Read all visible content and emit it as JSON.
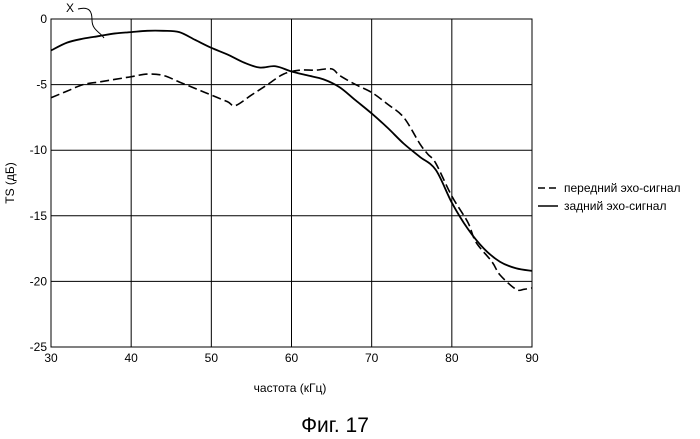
{
  "caption": "Фиг. 17",
  "chart_data": {
    "type": "line",
    "title": "",
    "xlabel": "частота (кГц)",
    "ylabel": "TS (дБ)",
    "xlim": [
      30,
      90
    ],
    "ylim": [
      -25,
      0
    ],
    "x_ticks": [
      30,
      40,
      50,
      60,
      70,
      80,
      90
    ],
    "y_ticks": [
      0,
      -5,
      -10,
      -15,
      -20,
      -25
    ],
    "grid": true,
    "legend_position": "right",
    "annotation": "X",
    "series": [
      {
        "name": "передний эхо-сигнал",
        "style": "dashed",
        "x": [
          30,
          32,
          34,
          36,
          38,
          40,
          42,
          44,
          46,
          48,
          50,
          52,
          53,
          55,
          57,
          59,
          61,
          63,
          65,
          66,
          68,
          70,
          72,
          74,
          76,
          77,
          78,
          80,
          82,
          83,
          85,
          86,
          88,
          89,
          90
        ],
        "y": [
          -6.0,
          -5.5,
          -5.0,
          -4.8,
          -4.6,
          -4.4,
          -4.2,
          -4.3,
          -4.8,
          -5.3,
          -5.8,
          -6.3,
          -6.6,
          -5.8,
          -5.0,
          -4.2,
          -3.9,
          -3.9,
          -3.8,
          -4.3,
          -5.0,
          -5.6,
          -6.5,
          -7.5,
          -9.5,
          -10.3,
          -11.0,
          -13.5,
          -15.5,
          -17.0,
          -18.5,
          -19.5,
          -20.6,
          -20.6,
          -20.5
        ]
      },
      {
        "name": "задний эхо-сигнал",
        "style": "solid",
        "x": [
          30,
          32,
          34,
          36,
          38,
          40,
          42,
          44,
          46,
          48,
          50,
          52,
          54,
          56,
          58,
          60,
          62,
          64,
          66,
          68,
          70,
          72,
          74,
          76,
          78,
          80,
          82,
          84,
          86,
          88,
          90
        ],
        "y": [
          -2.4,
          -1.8,
          -1.5,
          -1.3,
          -1.1,
          -1.0,
          -0.9,
          -0.9,
          -1.0,
          -1.6,
          -2.2,
          -2.7,
          -3.3,
          -3.7,
          -3.6,
          -4.0,
          -4.3,
          -4.6,
          -5.2,
          -6.2,
          -7.2,
          -8.3,
          -9.5,
          -10.5,
          -11.5,
          -14.0,
          -16.0,
          -17.5,
          -18.5,
          -19.0,
          -19.2
        ]
      }
    ]
  }
}
